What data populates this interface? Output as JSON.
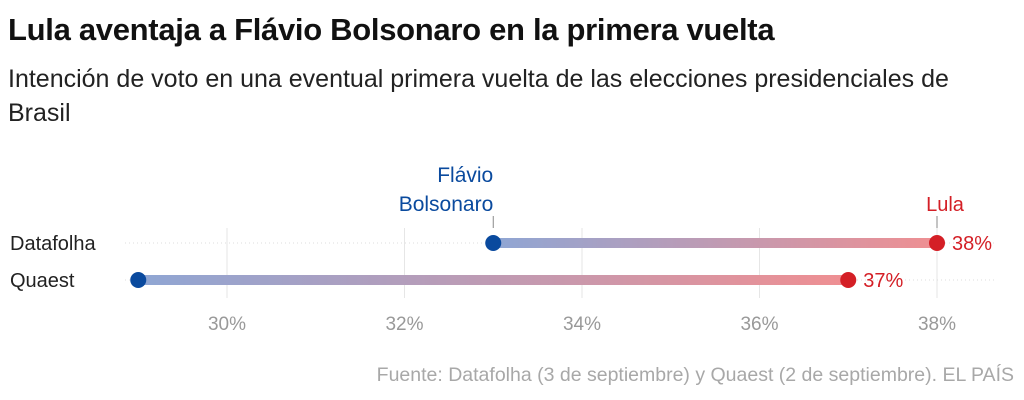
{
  "header": {
    "title": "Lula aventaja a Flávio Bolsonaro en la primera vuelta",
    "subtitle": "Intención de voto en una eventual primera vuelta de las elecciones presidenciales de Brasil"
  },
  "footer": {
    "source": "Fuente: Datafolha (3 de septiembre) y Quaest (2 de septiembre). EL PAÍS"
  },
  "chart_data": {
    "type": "dumbbell",
    "categories": [
      "Datafolha",
      "Quaest"
    ],
    "series": [
      {
        "name": "Flávio Bolsonaro",
        "values": [
          33,
          29
        ],
        "color": "#0a4a9e"
      },
      {
        "name": "Lula",
        "values": [
          38,
          37
        ],
        "color": "#d41f26"
      }
    ],
    "value_labels": [
      "38%",
      "37%"
    ],
    "x_ticks": [
      30,
      32,
      34,
      36,
      38
    ],
    "x_tick_labels": [
      "30%",
      "32%",
      "34%",
      "36%",
      "38%"
    ],
    "xlim": [
      29,
      38.5
    ],
    "grid": true,
    "legend": "direct labels"
  }
}
